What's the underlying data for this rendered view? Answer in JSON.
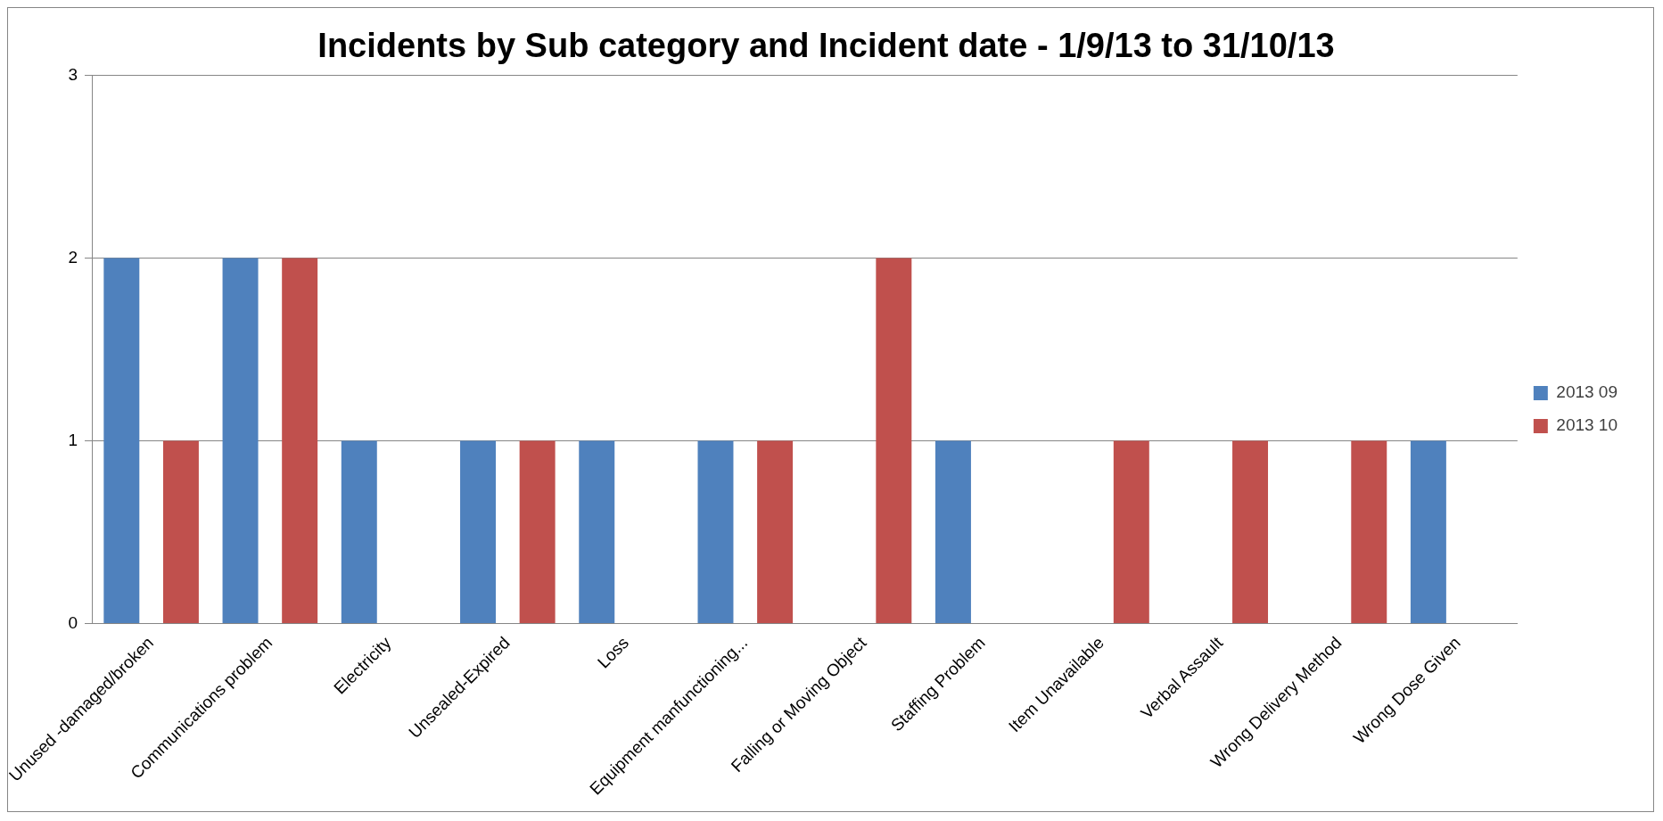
{
  "chart_data": {
    "type": "bar",
    "title": "Incidents by Sub category and Incident date - 1/9/13 to 31/10/13",
    "categories": [
      "Unused -damaged/broken",
      "Communications problem",
      "Electricity",
      "Unsealed-Expired",
      "Loss",
      "Equipment manfunctioning...",
      "Falling or Moving Object",
      "Staffing Problem",
      "Item Unavailable",
      "Verbal Assault",
      "Wrong Delivery Method",
      "Wrong Dose Given"
    ],
    "series": [
      {
        "name": "2013 09",
        "color": "#4f81bd",
        "values": [
          2,
          2,
          1,
          1,
          1,
          1,
          null,
          1,
          null,
          null,
          null,
          1
        ]
      },
      {
        "name": "2013 10",
        "color": "#c0504d",
        "values": [
          1,
          2,
          null,
          1,
          null,
          1,
          2,
          null,
          1,
          1,
          1,
          null
        ]
      }
    ],
    "ylim": [
      0,
      3
    ],
    "yticks": [
      0,
      1,
      2,
      3
    ],
    "grid": "y",
    "legend": "right"
  }
}
